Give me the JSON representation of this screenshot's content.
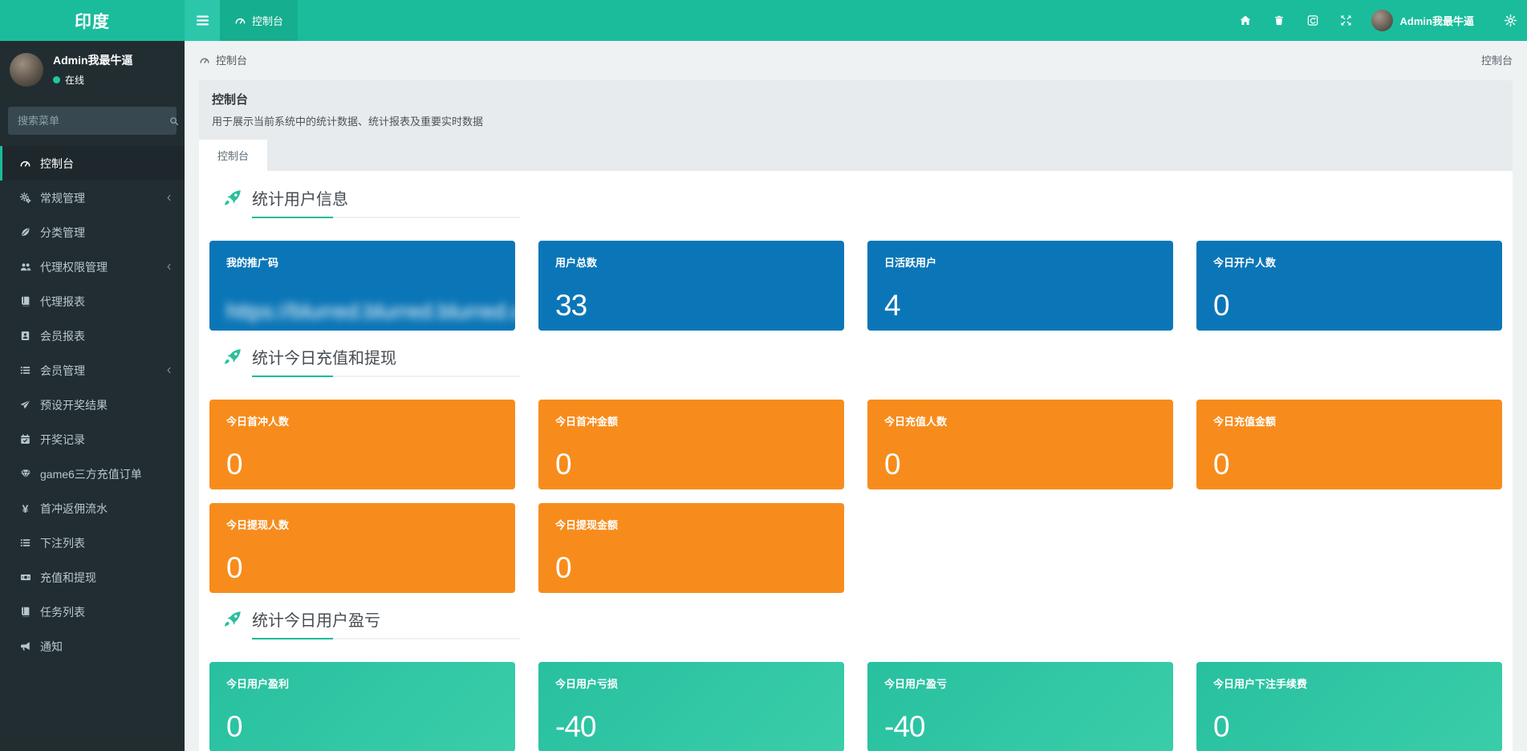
{
  "app": {
    "logo": "印度"
  },
  "colors": {
    "accent": "#1abc9c",
    "navbar": "#1abc9c",
    "sidebar": "#222d32",
    "card_blue": "#0b76b7",
    "card_orange": "#f78c1d",
    "card_teal_from": "#28c0a0",
    "card_teal_to": "#3acda9"
  },
  "navbar": {
    "tab_label": "控制台",
    "right_icons": [
      {
        "name": "home-icon"
      },
      {
        "name": "trash-icon"
      },
      {
        "name": "clear-cache-icon"
      },
      {
        "name": "fullscreen-icon"
      }
    ],
    "user_name": "Admin我最牛逼"
  },
  "sidebar": {
    "user": {
      "name": "Admin我最牛逼",
      "status": "在线"
    },
    "search_placeholder": "搜索菜单",
    "items": [
      {
        "label": "控制台",
        "icon": "dashboard-icon",
        "active": true,
        "has_children": false
      },
      {
        "label": "常规管理",
        "icon": "gears-icon",
        "active": false,
        "has_children": true
      },
      {
        "label": "分类管理",
        "icon": "leaf-icon",
        "active": false,
        "has_children": false
      },
      {
        "label": "代理权限管理",
        "icon": "users-icon",
        "active": false,
        "has_children": true
      },
      {
        "label": "代理报表",
        "icon": "book-icon",
        "active": false,
        "has_children": false
      },
      {
        "label": "会员报表",
        "icon": "id-card-icon",
        "active": false,
        "has_children": false
      },
      {
        "label": "会员管理",
        "icon": "list-icon",
        "active": false,
        "has_children": true
      },
      {
        "label": "预设开奖结果",
        "icon": "paper-plane-icon",
        "active": false,
        "has_children": false
      },
      {
        "label": "开奖记录",
        "icon": "calendar-icon",
        "active": false,
        "has_children": false
      },
      {
        "label": "game6三方充值订单",
        "icon": "gem-icon",
        "active": false,
        "has_children": false
      },
      {
        "label": "首冲返佣流水",
        "icon": "yen-icon",
        "active": false,
        "has_children": false
      },
      {
        "label": "下注列表",
        "icon": "list-icon",
        "active": false,
        "has_children": false
      },
      {
        "label": "充值和提现",
        "icon": "money-icon",
        "active": false,
        "has_children": false
      },
      {
        "label": "任务列表",
        "icon": "book-icon",
        "active": false,
        "has_children": false
      },
      {
        "label": "通知",
        "icon": "bullhorn-icon",
        "active": false,
        "has_children": false
      }
    ]
  },
  "breadcrumb": {
    "left": "控制台",
    "right": "控制台"
  },
  "page": {
    "title": "控制台",
    "description": "用于展示当前系统中的统计数据、统计报表及重要实时数据",
    "tab": "控制台"
  },
  "sections": [
    {
      "title": "统计用户信息",
      "color": "blue",
      "cards": [
        {
          "label": "我的推广码",
          "value": "https://blurred.blurred.blurred.com",
          "blurred": true
        },
        {
          "label": "用户总数",
          "value": "33",
          "blurred": false
        },
        {
          "label": "日活跃用户",
          "value": "4",
          "blurred": false
        },
        {
          "label": "今日开户人数",
          "value": "0",
          "blurred": false
        }
      ]
    },
    {
      "title": "统计今日充值和提现",
      "color": "orange",
      "cards": [
        {
          "label": "今日首冲人数",
          "value": "0",
          "blurred": false
        },
        {
          "label": "今日首冲金额",
          "value": "0",
          "blurred": false
        },
        {
          "label": "今日充值人数",
          "value": "0",
          "blurred": false
        },
        {
          "label": "今日充值金额",
          "value": "0",
          "blurred": false
        },
        {
          "label": "今日提现人数",
          "value": "0",
          "blurred": false
        },
        {
          "label": "今日提现金额",
          "value": "0",
          "blurred": false
        }
      ]
    },
    {
      "title": "统计今日用户盈亏",
      "color": "teal",
      "cards": [
        {
          "label": "今日用户盈利",
          "value": "0",
          "blurred": false
        },
        {
          "label": "今日用户亏损",
          "value": "-40",
          "blurred": false
        },
        {
          "label": "今日用户盈亏",
          "value": "-40",
          "blurred": false
        },
        {
          "label": "今日用户下注手续费",
          "value": "0",
          "blurred": false
        }
      ]
    }
  ]
}
